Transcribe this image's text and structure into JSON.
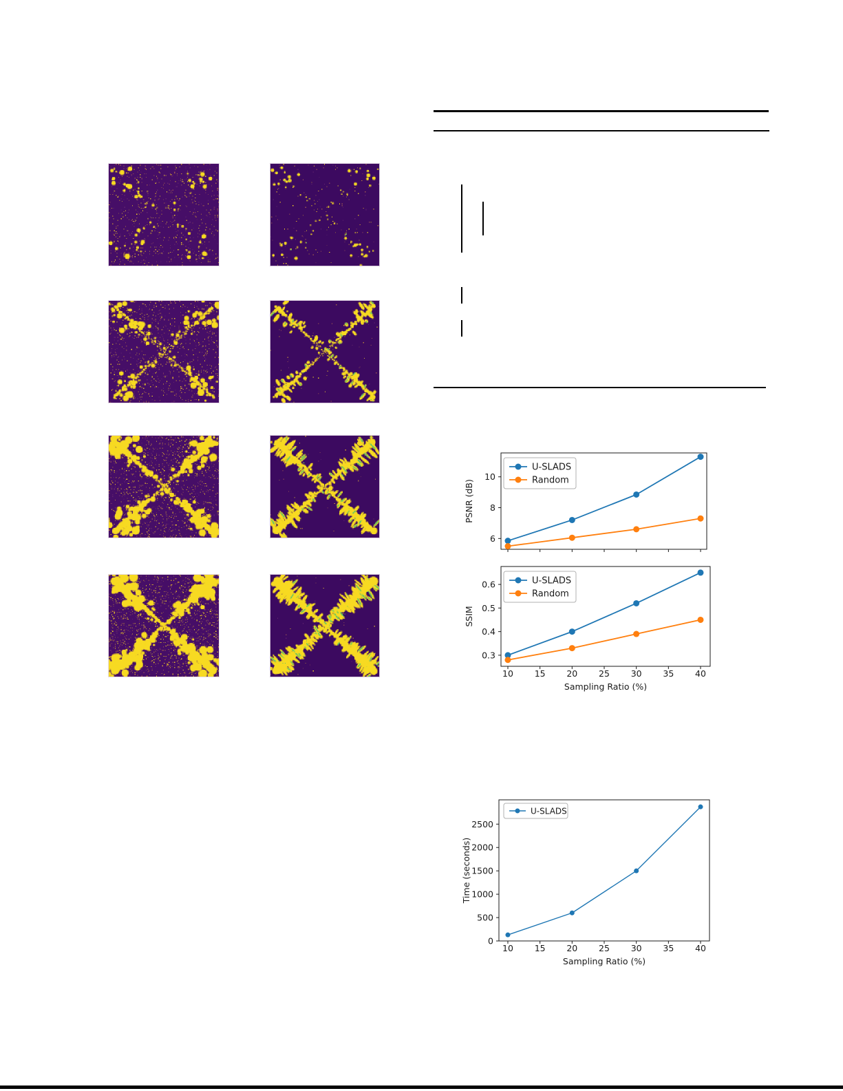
{
  "page": {
    "background": "#ffffff",
    "description_of_visible_content": "paper page with figure grid, ruled algorithm box without visible text, and three line charts"
  },
  "mask_figure": {
    "palette": {
      "foreground_yellow": "#f7da22",
      "accent_green": "#55c36a",
      "left_background": "#460e67",
      "right_background": "#3c0a60",
      "speckles": [
        "#6b2a72",
        "#a05a50",
        "#d9a52e",
        "#f7da22"
      ]
    },
    "panels": [
      {
        "id": "r1-left",
        "column": "left",
        "bg": "#460e67",
        "speckle": 0.05,
        "blobs": 95,
        "rmax": 2.6,
        "leaves": 0,
        "leafLen": 0,
        "green": 0,
        "trunk": 0,
        "seed": 11
      },
      {
        "id": "r1-right",
        "column": "right",
        "bg": "#3c0a60",
        "speckle": 0.01,
        "blobs": 80,
        "rmax": 1.9,
        "leaves": 0,
        "leafLen": 0,
        "green": 0.15,
        "trunk": 0,
        "seed": 12
      },
      {
        "id": "r2-left",
        "column": "left",
        "bg": "#460e67",
        "speckle": 0.065,
        "blobs": 170,
        "rmax": 3.2,
        "leaves": 0,
        "leafLen": 0,
        "green": 0,
        "trunk": 1.2,
        "seed": 21
      },
      {
        "id": "r2-right",
        "column": "right",
        "bg": "#3c0a60",
        "speckle": 0.004,
        "blobs": 40,
        "rmax": 2.2,
        "leaves": 100,
        "leafLen": 8,
        "green": 0.25,
        "trunk": 1.6,
        "seed": 22
      },
      {
        "id": "r3-left",
        "column": "left",
        "bg": "#460e67",
        "speckle": 0.095,
        "blobs": 260,
        "rmax": 4.0,
        "leaves": 0,
        "leafLen": 0,
        "green": 0,
        "trunk": 2.2,
        "seed": 31
      },
      {
        "id": "r3-right",
        "column": "right",
        "bg": "#3c0a60",
        "speckle": 0.003,
        "blobs": 30,
        "rmax": 2.2,
        "leaves": 170,
        "leafLen": 12,
        "green": 0.3,
        "trunk": 2.6,
        "seed": 32
      },
      {
        "id": "r4-left",
        "column": "left",
        "bg": "#460e67",
        "speckle": 0.12,
        "blobs": 330,
        "rmax": 4.6,
        "leaves": 0,
        "leafLen": 0,
        "green": 0,
        "trunk": 3.2,
        "seed": 41
      },
      {
        "id": "r4-right",
        "column": "right",
        "bg": "#3c0a60",
        "speckle": 0.003,
        "blobs": 30,
        "rmax": 2.4,
        "leaves": 230,
        "leafLen": 14,
        "green": 0.3,
        "trunk": 3.6,
        "seed": 42
      }
    ]
  },
  "chart_data": [
    {
      "id": "psnr",
      "type": "line",
      "x": [
        10,
        20,
        30,
        40
      ],
      "series": [
        {
          "name": "U-SLADS",
          "color": "#1f77b4",
          "values": [
            5.85,
            7.2,
            8.85,
            11.3
          ]
        },
        {
          "name": "Random",
          "color": "#ff7f0e",
          "values": [
            5.5,
            6.05,
            6.6,
            7.3
          ]
        }
      ],
      "title": "",
      "xlabel": "",
      "ylabel": "PSNR (dB)",
      "xlim": [
        8.93,
        40.96
      ],
      "ylim": [
        5.3,
        11.55
      ],
      "xticks": [
        10,
        15,
        20,
        25,
        30,
        35,
        40
      ],
      "yticks": [
        6,
        8,
        10
      ],
      "show_xtick_labels": false,
      "grid": false,
      "legend": {
        "entries": [
          "U-SLADS",
          "Random"
        ],
        "position": "upper-left"
      }
    },
    {
      "id": "ssim",
      "type": "line",
      "x": [
        10,
        20,
        30,
        40
      ],
      "series": [
        {
          "name": "U-SLADS",
          "color": "#1f77b4",
          "values": [
            0.3,
            0.4,
            0.52,
            0.65
          ]
        },
        {
          "name": "Random",
          "color": "#ff7f0e",
          "values": [
            0.28,
            0.33,
            0.39,
            0.45
          ]
        }
      ],
      "title": "",
      "xlabel": "Sampling Ratio (%)",
      "ylabel": "SSIM",
      "xlim": [
        8.93,
        41.5
      ],
      "ylim": [
        0.253,
        0.676
      ],
      "xticks": [
        10,
        15,
        20,
        25,
        30,
        35,
        40
      ],
      "yticks": [
        0.3,
        0.4,
        0.5,
        0.6
      ],
      "show_xtick_labels": true,
      "grid": false,
      "legend": {
        "entries": [
          "U-SLADS",
          "Random"
        ],
        "position": "upper-left"
      }
    },
    {
      "id": "time",
      "type": "line",
      "x": [
        10,
        20,
        30,
        40
      ],
      "series": [
        {
          "name": "U-SLADS",
          "color": "#1f77b4",
          "values": [
            130,
            600,
            1500,
            2870
          ]
        }
      ],
      "title": "",
      "xlabel": "Sampling Ratio (%)",
      "ylabel": "Time (seconds)",
      "xlim": [
        8.61,
        41.39
      ],
      "ylim": [
        0,
        3020
      ],
      "xticks": [
        10,
        15,
        20,
        25,
        30,
        35,
        40
      ],
      "yticks": [
        0,
        500,
        1000,
        1500,
        2000,
        2500
      ],
      "show_xtick_labels": true,
      "grid": false,
      "legend": {
        "entries": [
          "U-SLADS"
        ],
        "position": "upper-left"
      }
    }
  ]
}
